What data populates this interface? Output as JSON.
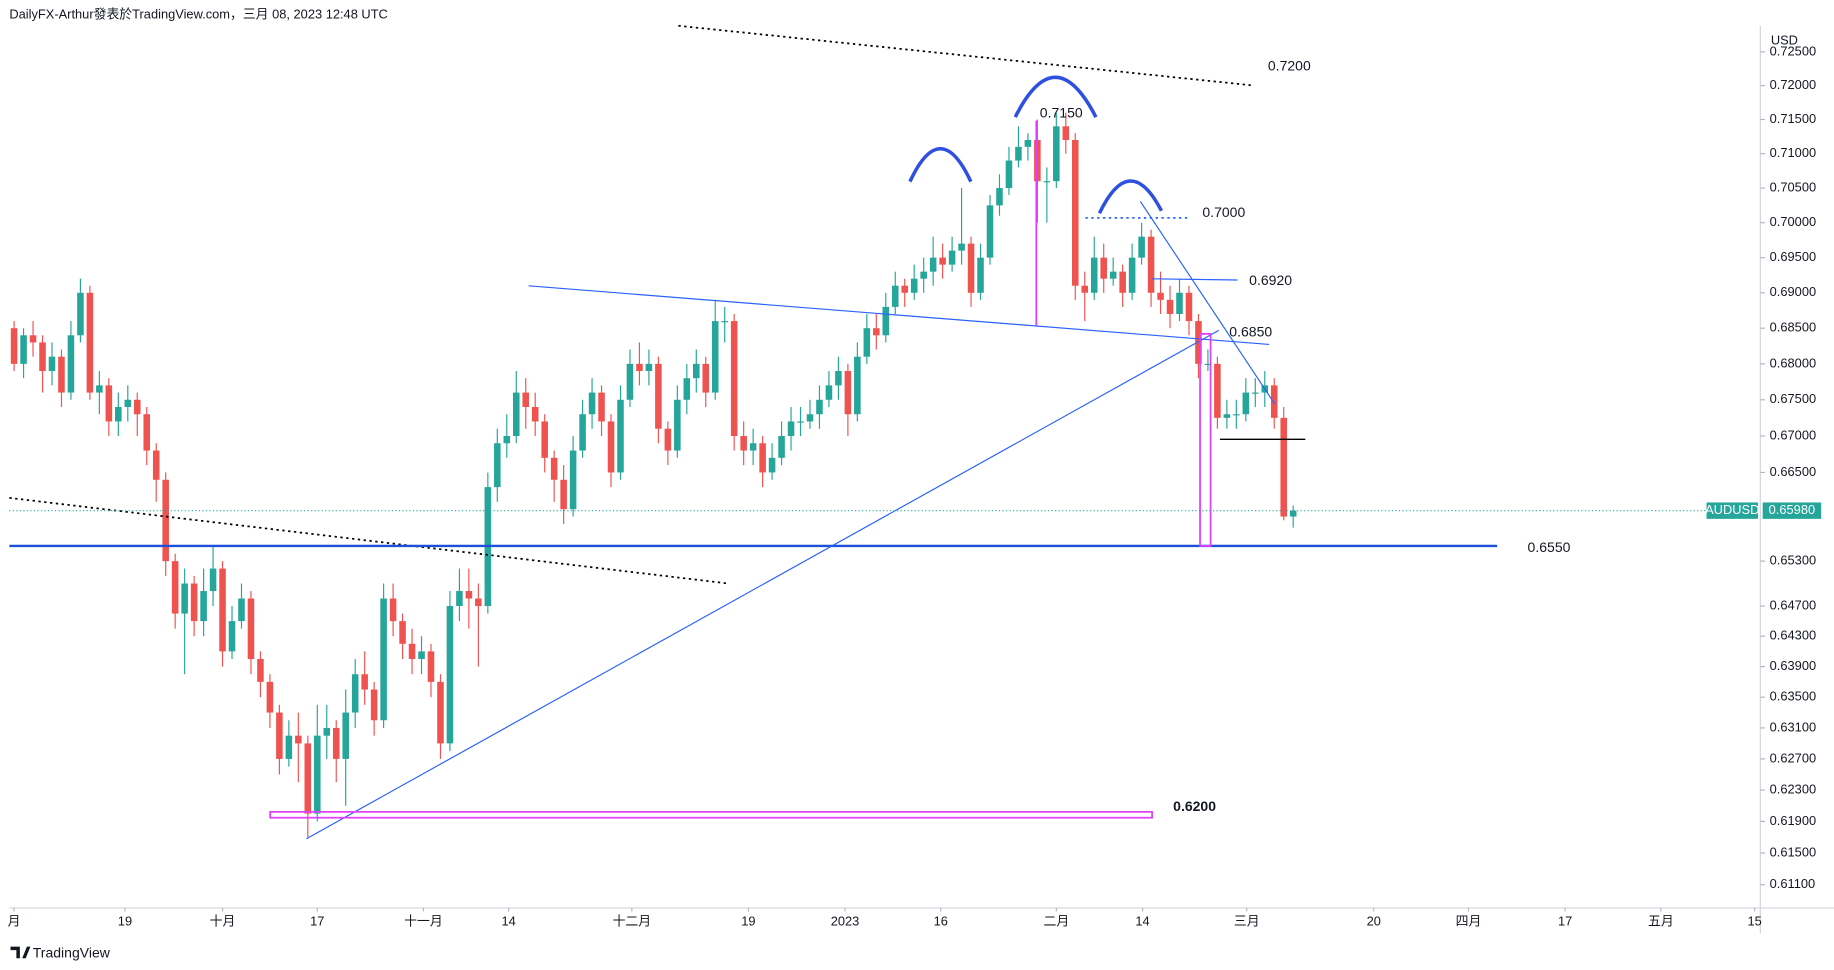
{
  "header": {
    "title": "DailyFX-Arthur發表於TradingView.com，三月 08, 2023 12:48 UTC",
    "brand": "TradingView"
  },
  "chart_data": {
    "type": "candlestick",
    "symbol": "AUDUSD",
    "currency": "USD",
    "log_scale": true,
    "grid": false,
    "up_color": "#26a69a",
    "down_color": "#ef5350",
    "last_price": {
      "value": 0.6598,
      "label": "0.65980"
    },
    "annotations": [
      "0.7200",
      "0.7150",
      "0.7000",
      "0.6920",
      "0.6850",
      "0.6550",
      "0.6200"
    ],
    "xlim": [
      -0.5,
      184.3
    ],
    "xticks": [
      {
        "value": 0,
        "label": "月"
      },
      {
        "value": 11.7,
        "label": "19"
      },
      {
        "value": 22,
        "label": "十月"
      },
      {
        "value": 32,
        "label": "17"
      },
      {
        "value": 43.2,
        "label": "十一月"
      },
      {
        "value": 52.2,
        "label": "14"
      },
      {
        "value": 65.2,
        "label": "十二月"
      },
      {
        "value": 77.5,
        "label": "19"
      },
      {
        "value": 87.7,
        "label": "2023"
      },
      {
        "value": 97.8,
        "label": "16"
      },
      {
        "value": 110,
        "label": "二月"
      },
      {
        "value": 119.1,
        "label": "14"
      },
      {
        "value": 130.1,
        "label": "三月"
      },
      {
        "value": 143.5,
        "label": "20"
      },
      {
        "value": 153.5,
        "label": "四月"
      },
      {
        "value": 163.7,
        "label": "17"
      },
      {
        "value": 173.8,
        "label": "五月"
      },
      {
        "value": 183.7,
        "label": "15"
      }
    ],
    "ylim": [
      0.6081,
      0.7289
    ],
    "yticks": [
      {
        "value": 0.725,
        "label": "0.72500"
      },
      {
        "value": 0.72,
        "label": "0.72000"
      },
      {
        "value": 0.715,
        "label": "0.71500"
      },
      {
        "value": 0.71,
        "label": "0.71000"
      },
      {
        "value": 0.705,
        "label": "0.70500"
      },
      {
        "value": 0.7,
        "label": "0.70000"
      },
      {
        "value": 0.695,
        "label": "0.69500"
      },
      {
        "value": 0.69,
        "label": "0.69000"
      },
      {
        "value": 0.685,
        "label": "0.68500"
      },
      {
        "value": 0.68,
        "label": "0.68000"
      },
      {
        "value": 0.675,
        "label": "0.67500"
      },
      {
        "value": 0.67,
        "label": "0.67000"
      },
      {
        "value": 0.665,
        "label": "0.66500"
      },
      {
        "value": 0.653,
        "label": "0.65300"
      },
      {
        "value": 0.647,
        "label": "0.64700"
      },
      {
        "value": 0.643,
        "label": "0.64300"
      },
      {
        "value": 0.639,
        "label": "0.63900"
      },
      {
        "value": 0.635,
        "label": "0.63500"
      },
      {
        "value": 0.631,
        "label": "0.63100"
      },
      {
        "value": 0.627,
        "label": "0.62700"
      },
      {
        "value": 0.623,
        "label": "0.62300"
      },
      {
        "value": 0.619,
        "label": "0.61900"
      },
      {
        "value": 0.615,
        "label": "0.61500"
      },
      {
        "value": 0.611,
        "label": "0.61100"
      }
    ],
    "ohlc": [
      [
        0.685,
        0.686,
        0.679,
        0.68
      ],
      [
        0.68,
        0.685,
        0.678,
        0.684
      ],
      [
        0.684,
        0.686,
        0.681,
        0.683
      ],
      [
        0.683,
        0.684,
        0.676,
        0.679
      ],
      [
        0.679,
        0.683,
        0.677,
        0.681
      ],
      [
        0.681,
        0.682,
        0.674,
        0.676
      ],
      [
        0.676,
        0.686,
        0.675,
        0.684
      ],
      [
        0.684,
        0.692,
        0.683,
        0.69
      ],
      [
        0.69,
        0.691,
        0.675,
        0.676
      ],
      [
        0.676,
        0.679,
        0.673,
        0.677
      ],
      [
        0.677,
        0.678,
        0.67,
        0.672
      ],
      [
        0.672,
        0.676,
        0.67,
        0.674
      ],
      [
        0.674,
        0.677,
        0.672,
        0.675
      ],
      [
        0.675,
        0.676,
        0.67,
        0.673
      ],
      [
        0.673,
        0.674,
        0.666,
        0.668
      ],
      [
        0.668,
        0.669,
        0.661,
        0.664
      ],
      [
        0.664,
        0.665,
        0.651,
        0.653
      ],
      [
        0.653,
        0.654,
        0.644,
        0.646
      ],
      [
        0.646,
        0.652,
        0.638,
        0.65
      ],
      [
        0.65,
        0.651,
        0.643,
        0.645
      ],
      [
        0.645,
        0.652,
        0.643,
        0.649
      ],
      [
        0.649,
        0.655,
        0.647,
        0.652
      ],
      [
        0.652,
        0.653,
        0.639,
        0.641
      ],
      [
        0.641,
        0.647,
        0.64,
        0.645
      ],
      [
        0.645,
        0.65,
        0.644,
        0.648
      ],
      [
        0.648,
        0.649,
        0.638,
        0.64
      ],
      [
        0.64,
        0.641,
        0.635,
        0.637
      ],
      [
        0.637,
        0.638,
        0.631,
        0.633
      ],
      [
        0.633,
        0.634,
        0.625,
        0.627
      ],
      [
        0.627,
        0.632,
        0.626,
        0.63
      ],
      [
        0.63,
        0.633,
        0.624,
        0.629
      ],
      [
        0.629,
        0.63,
        0.617,
        0.62
      ],
      [
        0.62,
        0.634,
        0.619,
        0.63
      ],
      [
        0.63,
        0.634,
        0.627,
        0.631
      ],
      [
        0.631,
        0.632,
        0.624,
        0.627
      ],
      [
        0.627,
        0.636,
        0.621,
        0.633
      ],
      [
        0.633,
        0.64,
        0.631,
        0.638
      ],
      [
        0.638,
        0.641,
        0.634,
        0.636
      ],
      [
        0.636,
        0.637,
        0.63,
        0.632
      ],
      [
        0.632,
        0.65,
        0.631,
        0.648
      ],
      [
        0.648,
        0.65,
        0.643,
        0.645
      ],
      [
        0.645,
        0.646,
        0.64,
        0.642
      ],
      [
        0.642,
        0.644,
        0.638,
        0.64
      ],
      [
        0.64,
        0.643,
        0.638,
        0.641
      ],
      [
        0.641,
        0.642,
        0.635,
        0.637
      ],
      [
        0.637,
        0.638,
        0.627,
        0.629
      ],
      [
        0.629,
        0.649,
        0.628,
        0.647
      ],
      [
        0.647,
        0.652,
        0.645,
        0.649
      ],
      [
        0.649,
        0.652,
        0.644,
        0.648
      ],
      [
        0.648,
        0.65,
        0.639,
        0.647
      ],
      [
        0.647,
        0.665,
        0.646,
        0.663
      ],
      [
        0.663,
        0.671,
        0.661,
        0.669
      ],
      [
        0.669,
        0.673,
        0.667,
        0.67
      ],
      [
        0.67,
        0.679,
        0.669,
        0.676
      ],
      [
        0.676,
        0.678,
        0.671,
        0.674
      ],
      [
        0.674,
        0.676,
        0.67,
        0.672
      ],
      [
        0.672,
        0.673,
        0.665,
        0.667
      ],
      [
        0.667,
        0.668,
        0.661,
        0.664
      ],
      [
        0.664,
        0.666,
        0.658,
        0.66
      ],
      [
        0.66,
        0.67,
        0.659,
        0.668
      ],
      [
        0.668,
        0.675,
        0.667,
        0.673
      ],
      [
        0.673,
        0.678,
        0.671,
        0.676
      ],
      [
        0.676,
        0.677,
        0.67,
        0.672
      ],
      [
        0.672,
        0.673,
        0.663,
        0.665
      ],
      [
        0.665,
        0.677,
        0.664,
        0.675
      ],
      [
        0.675,
        0.682,
        0.674,
        0.68
      ],
      [
        0.68,
        0.683,
        0.677,
        0.679
      ],
      [
        0.679,
        0.682,
        0.677,
        0.68
      ],
      [
        0.68,
        0.681,
        0.669,
        0.671
      ],
      [
        0.671,
        0.672,
        0.666,
        0.668
      ],
      [
        0.668,
        0.677,
        0.667,
        0.675
      ],
      [
        0.675,
        0.68,
        0.673,
        0.678
      ],
      [
        0.678,
        0.682,
        0.676,
        0.68
      ],
      [
        0.68,
        0.681,
        0.674,
        0.676
      ],
      [
        0.676,
        0.689,
        0.675,
        0.686
      ],
      [
        0.686,
        0.688,
        0.683,
        0.686
      ],
      [
        0.686,
        0.687,
        0.668,
        0.67
      ],
      [
        0.67,
        0.672,
        0.666,
        0.668
      ],
      [
        0.668,
        0.671,
        0.666,
        0.669
      ],
      [
        0.669,
        0.67,
        0.663,
        0.665
      ],
      [
        0.665,
        0.669,
        0.664,
        0.667
      ],
      [
        0.667,
        0.672,
        0.666,
        0.67
      ],
      [
        0.67,
        0.674,
        0.668,
        0.672
      ],
      [
        0.672,
        0.674,
        0.67,
        0.672
      ],
      [
        0.672,
        0.675,
        0.671,
        0.673
      ],
      [
        0.673,
        0.677,
        0.671,
        0.675
      ],
      [
        0.675,
        0.679,
        0.674,
        0.677
      ],
      [
        0.677,
        0.681,
        0.675,
        0.679
      ],
      [
        0.679,
        0.68,
        0.67,
        0.673
      ],
      [
        0.673,
        0.683,
        0.672,
        0.681
      ],
      [
        0.681,
        0.687,
        0.68,
        0.685
      ],
      [
        0.685,
        0.687,
        0.682,
        0.684
      ],
      [
        0.684,
        0.69,
        0.683,
        0.688
      ],
      [
        0.688,
        0.693,
        0.687,
        0.691
      ],
      [
        0.691,
        0.692,
        0.688,
        0.69
      ],
      [
        0.69,
        0.694,
        0.689,
        0.692
      ],
      [
        0.692,
        0.695,
        0.69,
        0.693
      ],
      [
        0.693,
        0.698,
        0.691,
        0.695
      ],
      [
        0.695,
        0.697,
        0.692,
        0.694
      ],
      [
        0.694,
        0.698,
        0.693,
        0.696
      ],
      [
        0.696,
        0.705,
        0.694,
        0.697
      ],
      [
        0.697,
        0.698,
        0.688,
        0.69
      ],
      [
        0.69,
        0.697,
        0.689,
        0.695
      ],
      [
        0.695,
        0.704,
        0.694,
        0.7025
      ],
      [
        0.7025,
        0.707,
        0.701,
        0.705
      ],
      [
        0.705,
        0.711,
        0.704,
        0.709
      ],
      [
        0.709,
        0.714,
        0.708,
        0.711
      ],
      [
        0.711,
        0.713,
        0.709,
        0.712
      ],
      [
        0.712,
        0.715,
        0.7,
        0.706
      ],
      [
        0.706,
        0.708,
        0.7,
        0.706
      ],
      [
        0.706,
        0.716,
        0.705,
        0.714
      ],
      [
        0.714,
        0.716,
        0.71,
        0.712
      ],
      [
        0.712,
        0.713,
        0.689,
        0.691
      ],
      [
        0.691,
        0.693,
        0.686,
        0.69
      ],
      [
        0.69,
        0.698,
        0.689,
        0.695
      ],
      [
        0.695,
        0.697,
        0.69,
        0.692
      ],
      [
        0.692,
        0.695,
        0.691,
        0.693
      ],
      [
        0.693,
        0.694,
        0.688,
        0.69
      ],
      [
        0.69,
        0.697,
        0.689,
        0.695
      ],
      [
        0.695,
        0.7,
        0.694,
        0.698
      ],
      [
        0.698,
        0.699,
        0.688,
        0.69
      ],
      [
        0.69,
        0.693,
        0.687,
        0.689
      ],
      [
        0.689,
        0.691,
        0.685,
        0.687
      ],
      [
        0.687,
        0.692,
        0.686,
        0.69
      ],
      [
        0.69,
        0.691,
        0.684,
        0.686
      ],
      [
        0.686,
        0.687,
        0.678,
        0.68
      ],
      [
        0.68,
        0.682,
        0.679,
        0.68
      ],
      [
        0.68,
        0.681,
        0.671,
        0.6725
      ],
      [
        0.6725,
        0.675,
        0.671,
        0.673
      ],
      [
        0.673,
        0.675,
        0.671,
        0.673
      ],
      [
        0.673,
        0.678,
        0.672,
        0.676
      ],
      [
        0.676,
        0.678,
        0.674,
        0.676
      ],
      [
        0.676,
        0.679,
        0.674,
        0.677
      ],
      [
        0.677,
        0.678,
        0.671,
        0.6725
      ],
      [
        0.6725,
        0.674,
        0.6585,
        0.659
      ],
      [
        0.659,
        0.6605,
        0.6575,
        0.6598
      ]
    ]
  }
}
